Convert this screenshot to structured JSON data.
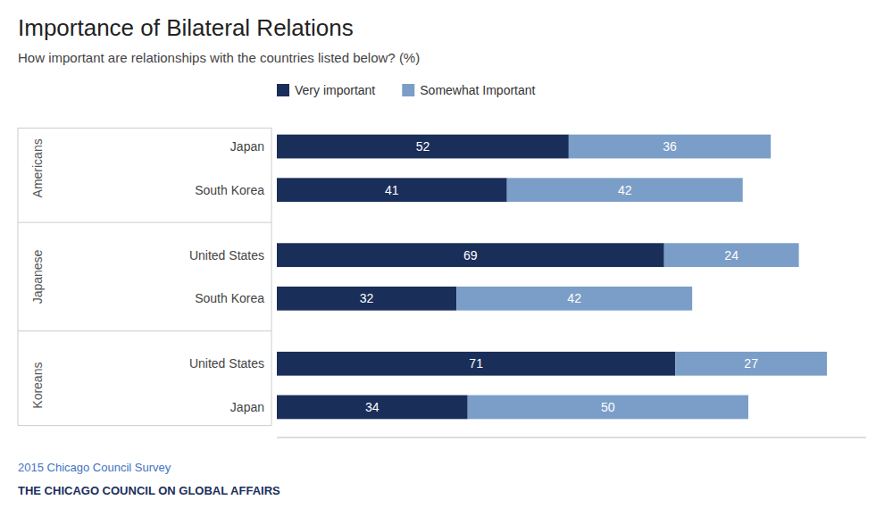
{
  "chart_data": {
    "type": "bar",
    "orientation": "horizontal",
    "stacked": true,
    "title": "Importance of Bilateral Relations",
    "subtitle": "How important are relationships with the countries listed below? (%)",
    "groups": [
      {
        "label": "Americans",
        "categories": [
          "Japan",
          "South Korea"
        ]
      },
      {
        "label": "Japanese",
        "categories": [
          "United States",
          "South Korea"
        ]
      },
      {
        "label": "Koreans",
        "categories": [
          "United States",
          "Japan"
        ]
      }
    ],
    "series": [
      {
        "name": "Very important",
        "color": "#1a2e5a",
        "values": [
          52,
          41,
          69,
          32,
          71,
          34
        ]
      },
      {
        "name": "Somewhat Important",
        "color": "#7b9ec8",
        "values": [
          36,
          42,
          24,
          42,
          27,
          50
        ]
      }
    ],
    "xlim": [
      0,
      105
    ],
    "tick_labels": "y",
    "data_labels": true,
    "grid": false,
    "legend": "top",
    "annotations": [
      "2015 Chicago Council Survey",
      "THE CHICAGO COUNCIL ON GLOBAL AFFAIRS"
    ]
  }
}
